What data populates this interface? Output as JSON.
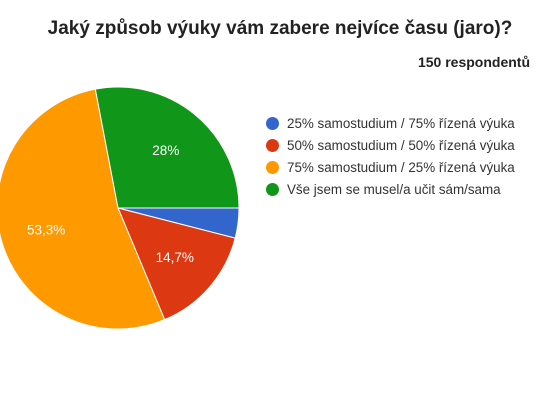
{
  "chart_data": {
    "type": "pie",
    "title": "Jaký způsob výuky vám zabere nejvíce času (jaro)?",
    "subtitle": "150 respondentů",
    "legend_position": "right",
    "slices": [
      {
        "label": "25% samostudium / 75% řízená výuka",
        "value": 4,
        "display": "",
        "color": "#3366cc"
      },
      {
        "label": "50% samostudium / 50% řízená výuka",
        "value": 14.7,
        "display": "14,7%",
        "color": "#dc3912"
      },
      {
        "label": "75% samostudium / 25% řízená výuka",
        "value": 53.3,
        "display": "53,3%",
        "color": "#ff9900"
      },
      {
        "label": "Vše jsem se musel/a učit sám/sama",
        "value": 28,
        "display": "28%",
        "color": "#109618"
      }
    ]
  }
}
